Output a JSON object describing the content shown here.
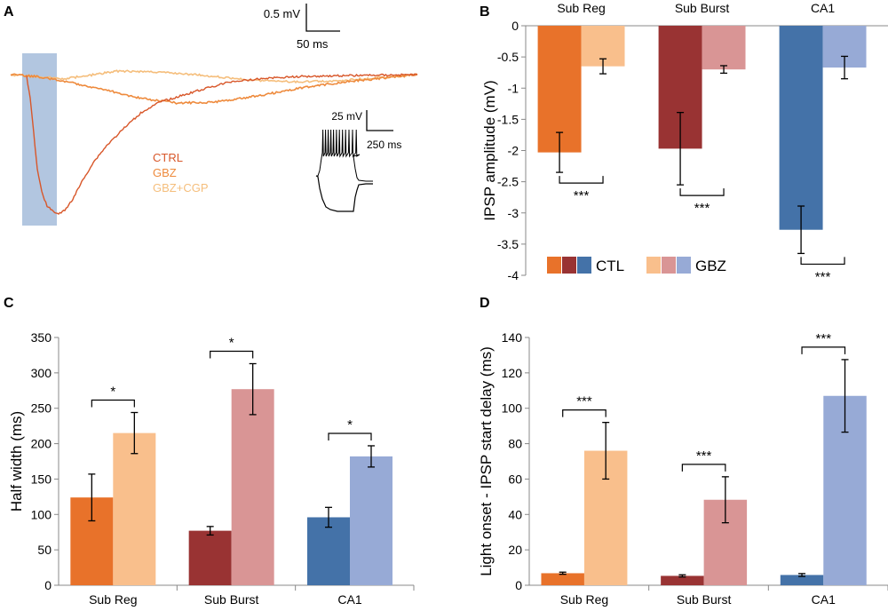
{
  "colors": {
    "ctl": [
      "#E8722A",
      "#993333",
      "#4472A8"
    ],
    "gbz": [
      "#F9BF8C",
      "#D99595",
      "#97AAD6"
    ],
    "trace_ctrl": "#D8572A",
    "trace_gbz": "#EE8A3C",
    "trace_gbzcgp": "#F5BE7C",
    "highlight": "#A4BCDA"
  },
  "panel_a": {
    "letter": "A",
    "scale_main": {
      "v": "0.5 mV",
      "t": "50 ms"
    },
    "scale_inset": {
      "v": "25 mV",
      "t": "250 ms"
    },
    "legend": [
      "CTRL",
      "GBZ",
      "GBZ+CGP"
    ]
  },
  "chart_data": [
    {
      "panel": "B",
      "type": "bar",
      "ylabel": "IPSP amplitude (mV)",
      "categories": [
        "Sub Reg",
        "Sub Burst",
        "CA1"
      ],
      "series": [
        {
          "name": "CTL",
          "values": [
            -2.03,
            -1.97,
            -3.27
          ],
          "errors": [
            0.32,
            0.58,
            0.38
          ]
        },
        {
          "name": "GBZ",
          "values": [
            -0.65,
            -0.7,
            -0.67
          ],
          "errors": [
            0.12,
            0.06,
            0.18
          ]
        }
      ],
      "ylim": [
        -4,
        0
      ],
      "yticks": [
        0,
        -0.5,
        -1,
        -1.5,
        -2,
        -2.5,
        -3,
        -3.5,
        -4
      ],
      "ytick_labels": [
        "0",
        "-0.5",
        "-1",
        "-1.5",
        "-2",
        "-2.5",
        "-3",
        "-3.5",
        "-4"
      ],
      "significance": [
        "***",
        "***",
        "***"
      ],
      "legend": [
        "CTL",
        "GBZ"
      ]
    },
    {
      "panel": "C",
      "type": "bar",
      "ylabel": "Half width (ms)",
      "categories": [
        "Sub Reg",
        "Sub Burst",
        "CA1"
      ],
      "series": [
        {
          "name": "CTL",
          "values": [
            124,
            77,
            96
          ],
          "errors": [
            33,
            6,
            14
          ]
        },
        {
          "name": "GBZ",
          "values": [
            215,
            277,
            182
          ],
          "errors": [
            29,
            36,
            15
          ]
        }
      ],
      "ylim": [
        0,
        350
      ],
      "yticks": [
        0,
        50,
        100,
        150,
        200,
        250,
        300,
        350
      ],
      "ytick_labels": [
        "0",
        "50",
        "100",
        "150",
        "200",
        "250",
        "300",
        "350"
      ],
      "significance": [
        "*",
        "*",
        "*"
      ]
    },
    {
      "panel": "D",
      "type": "bar",
      "ylabel": "Light onset - IPSP start delay (ms)",
      "categories": [
        "Sub Reg",
        "Sub Burst",
        "CA1"
      ],
      "series": [
        {
          "name": "CTL",
          "values": [
            6.8,
            5.3,
            5.8
          ],
          "errors": [
            0.6,
            0.6,
            0.8
          ]
        },
        {
          "name": "GBZ",
          "values": [
            76,
            48.3,
            107
          ],
          "errors": [
            16,
            13,
            20.5
          ]
        }
      ],
      "ylim": [
        0,
        140
      ],
      "yticks": [
        0,
        20,
        40,
        60,
        80,
        100,
        120,
        140
      ],
      "ytick_labels": [
        "0",
        "20",
        "40",
        "60",
        "80",
        "100",
        "120",
        "140"
      ],
      "significance": [
        "***",
        "***",
        "***"
      ]
    }
  ]
}
